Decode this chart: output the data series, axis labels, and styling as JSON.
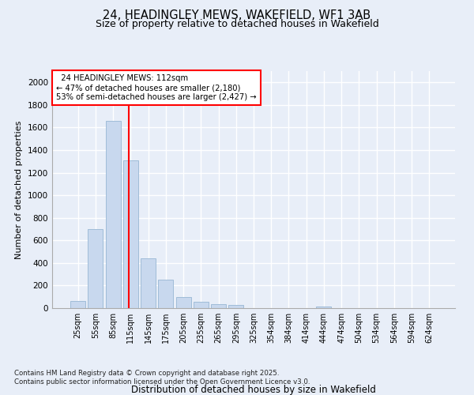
{
  "title_line1": "24, HEADINGLEY MEWS, WAKEFIELD, WF1 3AB",
  "title_line2": "Size of property relative to detached houses in Wakefield",
  "xlabel": "Distribution of detached houses by size in Wakefield",
  "ylabel": "Number of detached properties",
  "categories": [
    "25sqm",
    "55sqm",
    "85sqm",
    "115sqm",
    "145sqm",
    "175sqm",
    "205sqm",
    "235sqm",
    "265sqm",
    "295sqm",
    "325sqm",
    "354sqm",
    "384sqm",
    "414sqm",
    "444sqm",
    "474sqm",
    "504sqm",
    "534sqm",
    "564sqm",
    "594sqm",
    "624sqm"
  ],
  "values": [
    65,
    700,
    1660,
    1310,
    440,
    255,
    95,
    55,
    35,
    25,
    0,
    0,
    0,
    0,
    15,
    0,
    0,
    0,
    0,
    0,
    0
  ],
  "bar_color": "#c8d8ee",
  "bar_edge_color": "#a0bcd8",
  "property_label": "24 HEADINGLEY MEWS: 112sqm",
  "pct_smaller": 47,
  "n_smaller": 2180,
  "pct_larger": 53,
  "n_larger": 2427,
  "vline_x_index": 2.9,
  "ylim": [
    0,
    2100
  ],
  "yticks": [
    0,
    200,
    400,
    600,
    800,
    1000,
    1200,
    1400,
    1600,
    1800,
    2000
  ],
  "bg_color": "#e8eef8",
  "grid_color": "#ffffff",
  "footnote_line1": "Contains HM Land Registry data © Crown copyright and database right 2025.",
  "footnote_line2": "Contains public sector information licensed under the Open Government Licence v3.0."
}
